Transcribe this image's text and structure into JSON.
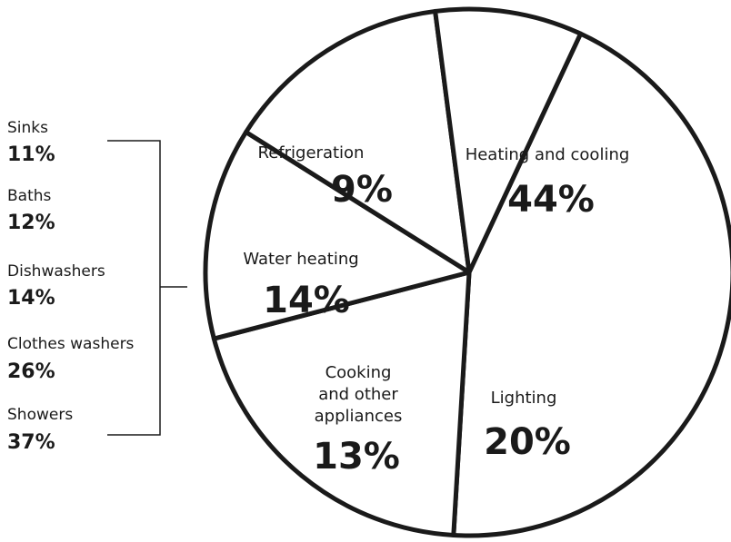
{
  "chart_data": {
    "type": "pie",
    "slices": [
      {
        "label": "Heating and cooling",
        "value": 44,
        "display": "44%"
      },
      {
        "label": "Lighting",
        "value": 20,
        "display": "20%"
      },
      {
        "label_lines": [
          "Cooking",
          "and other",
          "appliances"
        ],
        "value": 13,
        "display": "13%"
      },
      {
        "label": "Water heating",
        "value": 14,
        "display": "14%"
      },
      {
        "label": "Refrigeration",
        "value": 9,
        "display": "9%"
      }
    ],
    "breakdown": {
      "of_slice": "Water heating",
      "items": [
        {
          "label": "Sinks",
          "value": 11,
          "display": "11%"
        },
        {
          "label": "Baths",
          "value": 12,
          "display": "12%"
        },
        {
          "label": "Dishwashers",
          "value": 14,
          "display": "14%"
        },
        {
          "label": "Clothes washers",
          "value": 26,
          "display": "26%"
        },
        {
          "label": "Showers",
          "value": 37,
          "display": "37%"
        }
      ]
    },
    "colors": {
      "fill": "#ffffff",
      "stroke": "#1a1a1a"
    }
  }
}
